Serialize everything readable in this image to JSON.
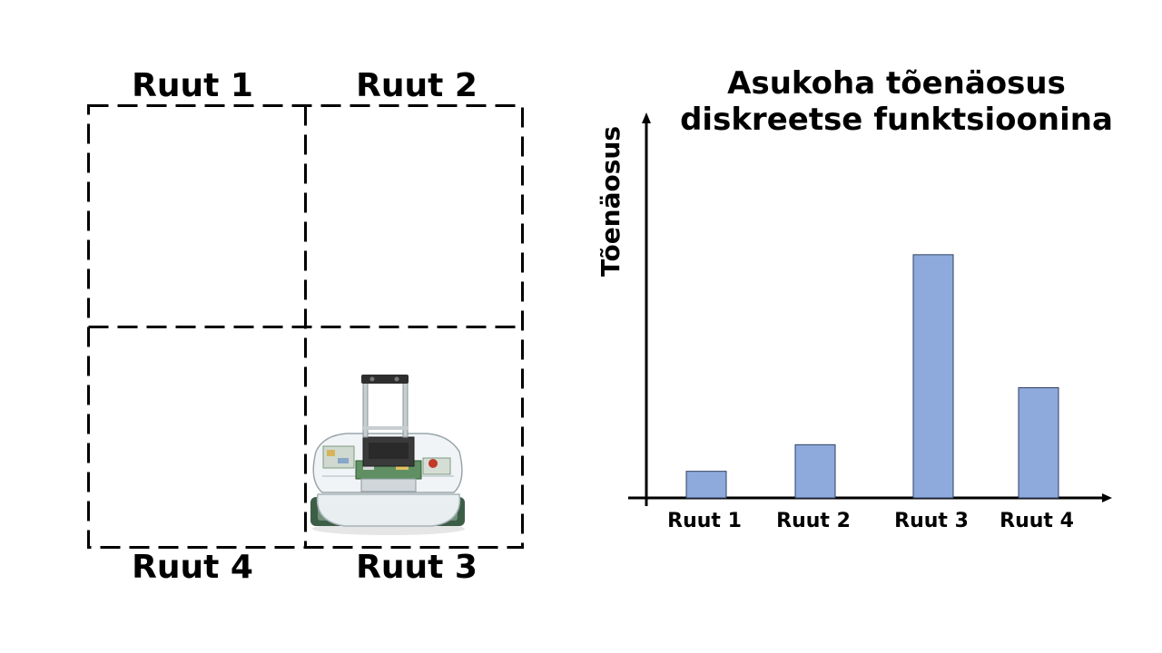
{
  "grid": {
    "cells": {
      "top_left": "Ruut 1",
      "top_right": "Ruut 2",
      "bottom_left": "Ruut 4",
      "bottom_right": "Ruut 3"
    },
    "robot_cell": "Ruut 3",
    "robot_icon": "robot-icon"
  },
  "chart_data": {
    "type": "bar",
    "title": "Asukoha tõenäosus diskreetse funktsioonina",
    "ylabel": "Tõenäosus",
    "xlabel": "",
    "categories": [
      "Ruut 1",
      "Ruut 2",
      "Ruut 3",
      "Ruut 4"
    ],
    "values": [
      0.07,
      0.14,
      0.64,
      0.29
    ],
    "ylim": [
      0,
      1
    ],
    "bar_color": "#8eaadc",
    "bar_stroke": "#2f3f5f",
    "grid": false
  }
}
